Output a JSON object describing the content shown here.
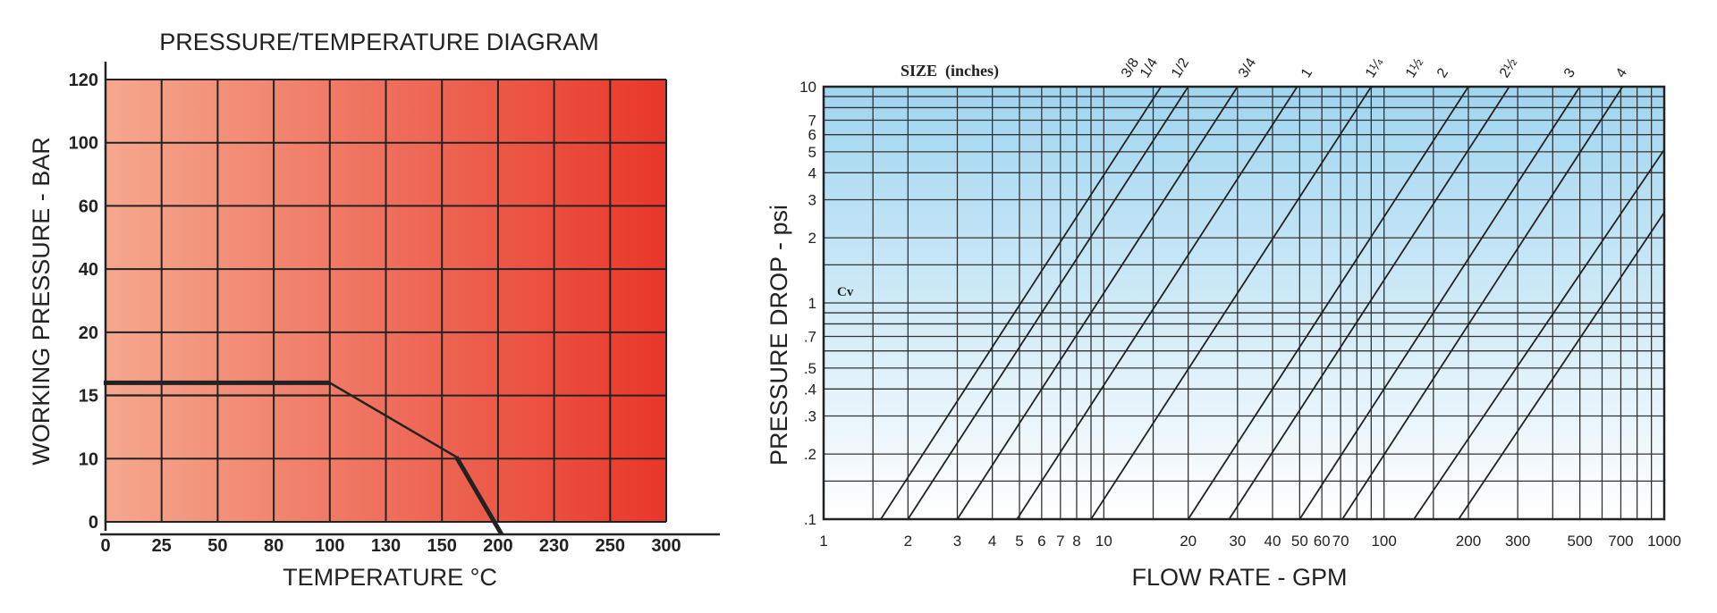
{
  "chart_data": [
    {
      "type": "line",
      "title": "PRESSURE/TEMPERATURE DIAGRAM",
      "xlabel": "TEMPERATURE °C",
      "ylabel": "WORKING PRESSURE - BAR",
      "x_ticks": [
        "0",
        "25",
        "50",
        "80",
        "100",
        "130",
        "150",
        "200",
        "230",
        "250",
        "300"
      ],
      "y_ticks": [
        "0",
        "10",
        "15",
        "20",
        "40",
        "60",
        "100",
        "120"
      ],
      "grid": true,
      "background_gradient": [
        "#f5a88e",
        "#e8372a"
      ],
      "series": [
        {
          "points": [
            [
              "0",
              16
            ],
            [
              "100",
              16
            ],
            [
              "150",
              10
            ],
            [
              "200",
              0
            ]
          ]
        }
      ]
    },
    {
      "type": "line",
      "scale": "log-log",
      "xlabel": "FLOW RATE - GPM",
      "ylabel": "PRESSURE DROP - psi",
      "xlim": [
        1,
        1000
      ],
      "ylim": [
        0.1,
        10
      ],
      "x_tick_labels": [
        "1",
        "2",
        "3",
        "4",
        "5",
        "6",
        "7",
        "8",
        "10",
        "20",
        "30",
        "40",
        "50",
        "60",
        "70",
        "100",
        "200",
        "300",
        "500",
        "700",
        "1000"
      ],
      "y_tick_labels": [
        ".1",
        ".2",
        ".3",
        ".4",
        ".5",
        ".7",
        "1",
        "2",
        "3",
        "4",
        "5",
        "6",
        "7",
        "10"
      ],
      "size_label": "SIZE  (inches)",
      "cv_label": "Cv",
      "background_gradient": [
        "#ffffff",
        "#9fd5f0"
      ],
      "series": [
        {
          "name": "3/8",
          "x_at_0_1": 1.6,
          "x_at_10": 16
        },
        {
          "name": "1/4",
          "x_at_0_1": 2.0,
          "x_at_10": 20
        },
        {
          "name": "1/2",
          "x_at_0_1": 3.0,
          "x_at_10": 30
        },
        {
          "name": "3/4",
          "x_at_0_1": 4.9,
          "x_at_10": 49
        },
        {
          "name": "1",
          "x_at_0_1": 9,
          "x_at_10": 90
        },
        {
          "name": "1¼",
          "x_at_0_1": 20,
          "x_at_10": 200
        },
        {
          "name": "1½",
          "x_at_0_1": 28,
          "x_at_10": 280
        },
        {
          "name": "2",
          "x_at_0_1": 50,
          "x_at_10": 500
        },
        {
          "name": "2½",
          "x_at_0_1": 71,
          "x_at_10": 710
        }
      ],
      "top_labels": [
        "3/8",
        "1/4",
        "1/2",
        "3/4",
        "1",
        "1¼",
        "1½",
        "2",
        "2½",
        "3",
        "4"
      ]
    }
  ]
}
